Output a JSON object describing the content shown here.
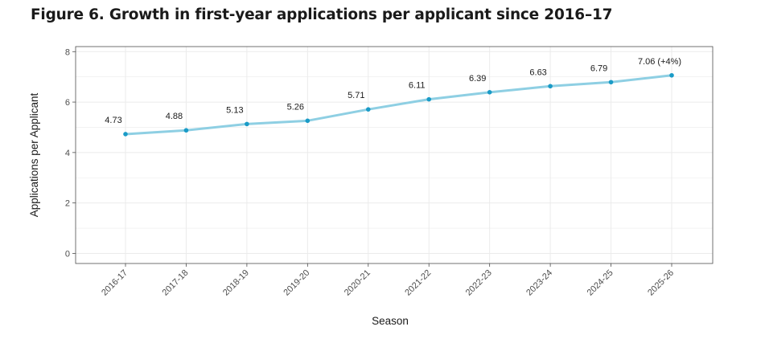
{
  "figure": {
    "title": "Figure 6. Growth in first-year applications per applicant since 2016–17"
  },
  "chart_data": {
    "type": "line",
    "title": "Figure 6. Growth in first-year applications per applicant since 2016–17",
    "xlabel": "Season",
    "ylabel": "Applications per Applicant",
    "categories": [
      "2016-17",
      "2017-18",
      "2018-19",
      "2019-20",
      "2020-21",
      "2021-22",
      "2022-23",
      "2023-24",
      "2024-25",
      "2025-26"
    ],
    "values": [
      4.73,
      4.88,
      5.13,
      5.26,
      5.71,
      6.11,
      6.39,
      6.63,
      6.79,
      7.06
    ],
    "data_labels": [
      "4.73",
      "4.88",
      "5.13",
      "5.26",
      "5.71",
      "6.11",
      "6.39",
      "6.63",
      "6.79",
      "7.06 (+4%)"
    ],
    "yticks": [
      0,
      2,
      4,
      6,
      8
    ],
    "ylim": [
      -0.4,
      8.2
    ],
    "grid": true,
    "colors": {
      "line": "#8ecfe3",
      "point": "#1a9bc7",
      "grid": "#ebebeb",
      "panel_border": "#4d4d4d"
    }
  }
}
